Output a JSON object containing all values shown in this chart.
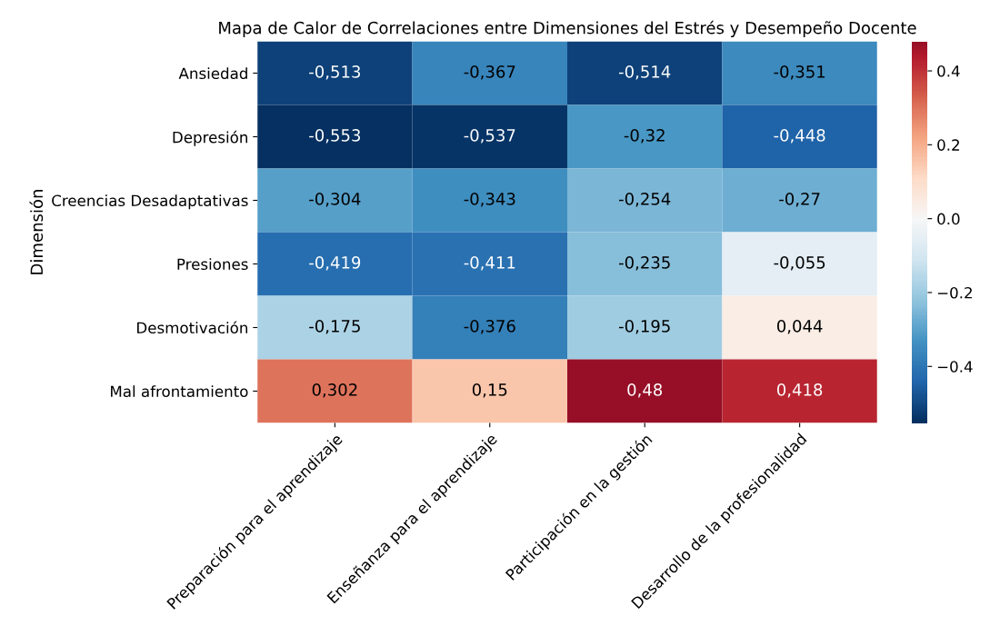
{
  "chart_data": {
    "type": "heatmap",
    "title": "Mapa de Calor de Correlaciones entre Dimensiones del Estrés y Desempeño Docente",
    "ylabel": "Dimensión",
    "categories": [
      "Preparación para el aprendizaje",
      "Enseñanza para el aprendizaje",
      "Participación en la gestión",
      "Desarrollo de la profesionalidad"
    ],
    "y_categories": [
      "Ansiedad",
      "Depresión",
      "Creencias Desadaptativas",
      "Presiones",
      "Desmotivación",
      "Mal afrontamiento"
    ],
    "cells": [
      [
        -0.513,
        -0.367,
        -0.514,
        -0.351
      ],
      [
        -0.553,
        -0.537,
        -0.32,
        -0.448
      ],
      [
        -0.304,
        -0.343,
        -0.254,
        -0.27
      ],
      [
        -0.419,
        -0.411,
        -0.235,
        -0.055
      ],
      [
        -0.175,
        -0.376,
        -0.195,
        0.044
      ],
      [
        0.302,
        0.15,
        0.48,
        0.418
      ]
    ],
    "cell_labels": [
      [
        "-0,513",
        "-0,367",
        "-0,514",
        "-0,351"
      ],
      [
        "-0,553",
        "-0,537",
        "-0,32",
        "-0,448"
      ],
      [
        "-0,304",
        "-0,343",
        "-0,254",
        "-0,27"
      ],
      [
        "-0,419",
        "-0,411",
        "-0,235",
        "-0,055"
      ],
      [
        "-0,175",
        "-0,376",
        "-0,195",
        "0,044"
      ],
      [
        "0,302",
        "0,15",
        "0,48",
        "0,418"
      ]
    ],
    "clim": [
      -0.553,
      0.48
    ],
    "cticks": [
      {
        "value": -0.4,
        "label": "−0.4"
      },
      {
        "value": -0.2,
        "label": "−0.2"
      },
      {
        "value": 0.0,
        "label": "0.0"
      },
      {
        "value": 0.2,
        "label": "0.2"
      },
      {
        "value": 0.4,
        "label": "0.4"
      }
    ]
  }
}
